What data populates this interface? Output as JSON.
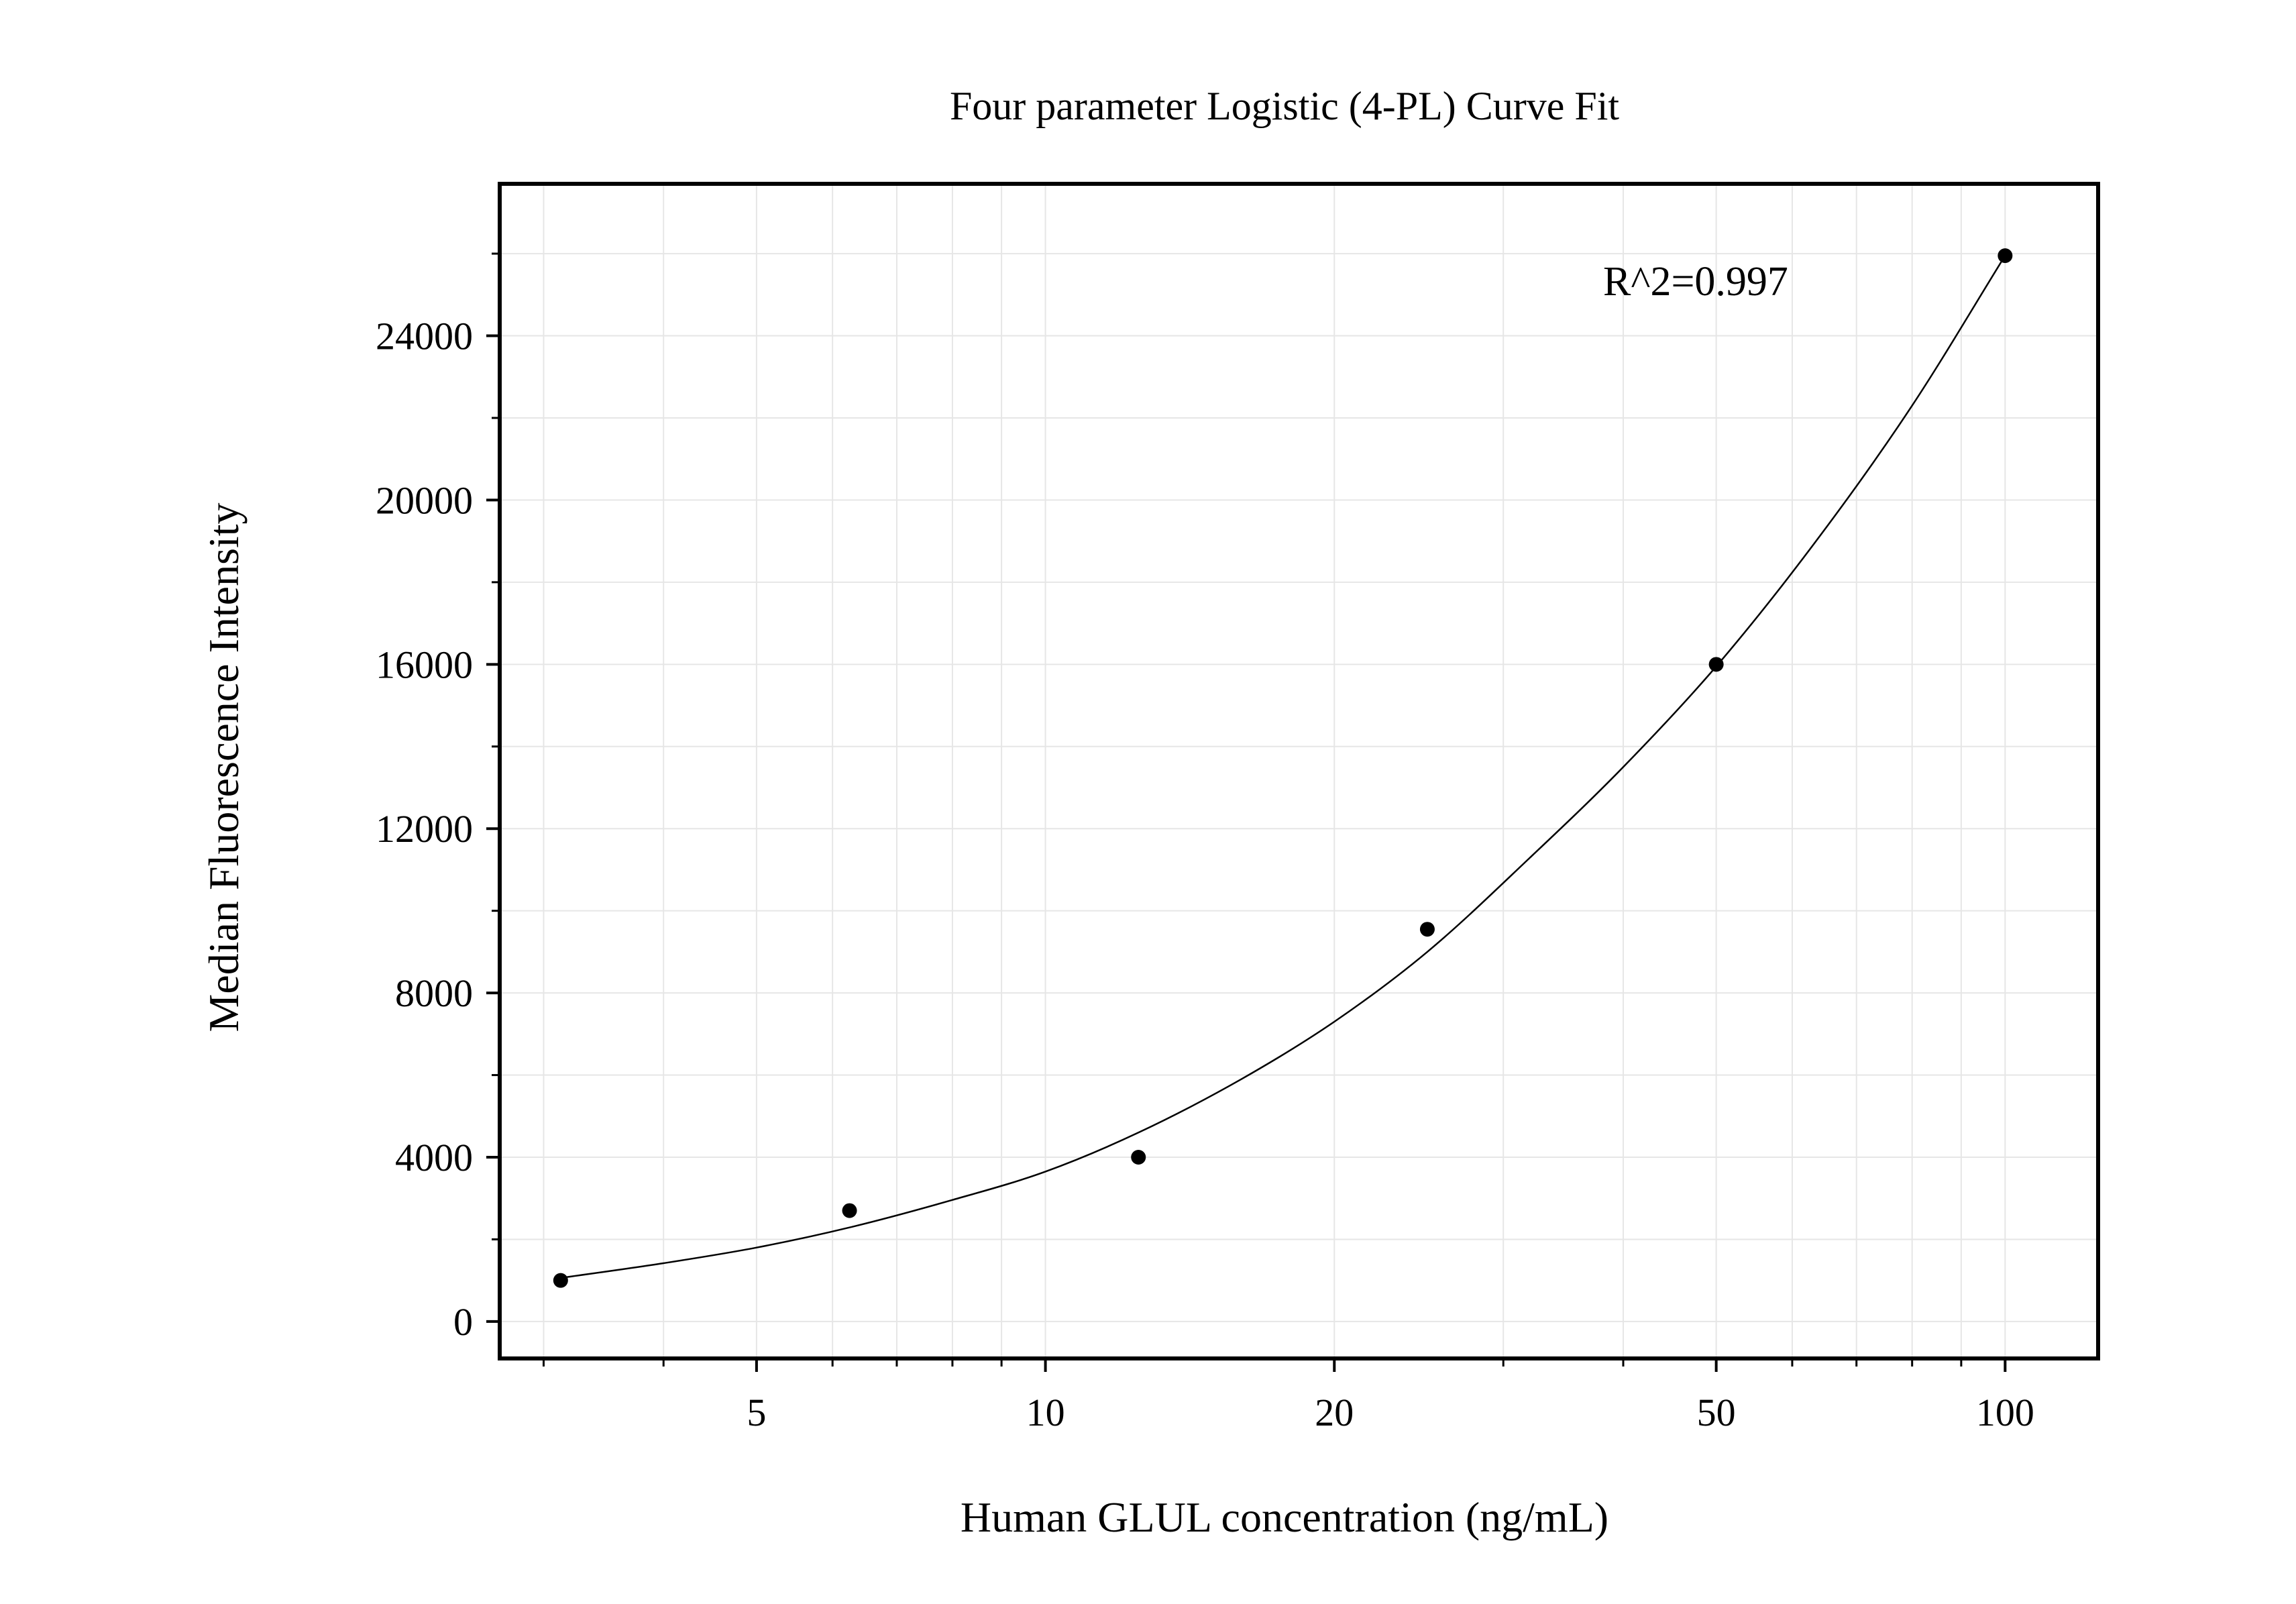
{
  "chart_data": {
    "type": "scatter",
    "title": "Four parameter Logistic (4-PL) Curve Fit",
    "xlabel": "Human GLUL concentration (ng/mL)",
    "ylabel": "Median Fluorescence Intensity",
    "x_scale": "log",
    "xlim": [
      2.7,
      125
    ],
    "ylim": [
      -900,
      27700
    ],
    "x_ticks": [
      5,
      10,
      20,
      50,
      100
    ],
    "x_tick_labels": [
      "5",
      "10",
      "20",
      "50",
      "100"
    ],
    "y_ticks": [
      0,
      4000,
      8000,
      12000,
      16000,
      20000,
      24000
    ],
    "y_tick_labels": [
      "0",
      "4000",
      "8000",
      "12000",
      "16000",
      "20000",
      "24000"
    ],
    "grid": true,
    "annotation": "R^2=0.997",
    "series": [
      {
        "kind": "points",
        "x": [
          3.125,
          6.25,
          12.5,
          25,
          50,
          100
        ],
        "y": [
          1000,
          2700,
          4000,
          9550,
          16000,
          25950
        ]
      },
      {
        "kind": "fit",
        "x": [
          3.125,
          4,
          5,
          6.25,
          8,
          10,
          12.5,
          16,
          20,
          25,
          32,
          40,
          50,
          64,
          80,
          100
        ],
        "y": [
          1060,
          1420,
          1800,
          2290,
          2960,
          3650,
          4600,
          5900,
          7300,
          9000,
          11300,
          13500,
          15950,
          19100,
          22300,
          25950
        ]
      }
    ],
    "colors": {
      "axis": "#000000",
      "grid": "#e6e6e6",
      "marker": "#000000",
      "line": "#000000"
    }
  }
}
